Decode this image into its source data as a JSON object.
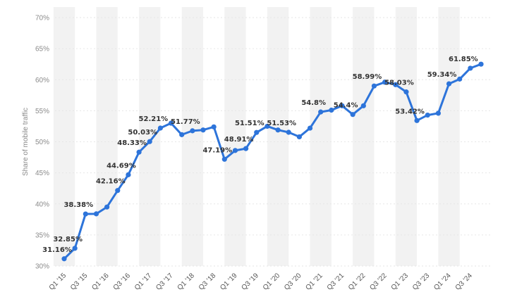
{
  "chart_data": {
    "type": "line",
    "title": "",
    "xlabel": "",
    "ylabel": "Share of mobile traffic",
    "ylim": [
      30,
      70
    ],
    "yticks": [
      "30%",
      "35%",
      "40%",
      "45%",
      "50%",
      "55%",
      "60%",
      "65%",
      "70%"
    ],
    "grid": true,
    "legend": "none",
    "line_color": "#2d74da",
    "band_color": "#f2f2f2",
    "x": [
      "Q1 '15",
      "Q2 '15",
      "Q3 '15",
      "Q4 '15",
      "Q1 '16",
      "Q2 '16",
      "Q3 '16",
      "Q4 '16",
      "Q1 '17",
      "Q2 '17",
      "Q3 '17",
      "Q4 '17",
      "Q1 '18",
      "Q2 '18",
      "Q3 '18",
      "Q4 '18",
      "Q1 '19",
      "Q2 '19",
      "Q3 '19",
      "Q4 '19",
      "Q1 '20",
      "Q2 '20",
      "Q3 '20",
      "Q4 '20",
      "Q1 '21",
      "Q2 '21",
      "Q3 '21",
      "Q4 '21",
      "Q1 '22",
      "Q2 '22",
      "Q3 '22",
      "Q4 '22",
      "Q1 '23",
      "Q2 '23",
      "Q3 '23",
      "Q4 '23",
      "Q1 '24",
      "Q2 '24",
      "Q3 '24",
      "Q4 '24"
    ],
    "xtick_labels": [
      "Q1 '15",
      "Q3 '15",
      "Q1 '16",
      "Q3 '16",
      "Q1 '17",
      "Q3 '17",
      "Q1 '18",
      "Q3 '18",
      "Q1 '19",
      "Q3 '19",
      "Q1 '20",
      "Q3 '20",
      "Q1 '21",
      "Q3 '21",
      "Q1 '22",
      "Q3 '22",
      "Q1 '23",
      "Q3 '23",
      "Q1 '24",
      "Q3 '24"
    ],
    "series": [
      {
        "values": [
          31.16,
          32.85,
          38.38,
          38.4,
          39.5,
          42.16,
          44.69,
          48.33,
          50.03,
          52.21,
          53.0,
          51.15,
          51.77,
          51.9,
          52.4,
          47.19,
          48.6,
          48.91,
          51.51,
          52.5,
          51.9,
          51.53,
          50.8,
          52.2,
          54.8,
          55.1,
          55.8,
          54.4,
          55.8,
          58.99,
          59.6,
          59.2,
          58.03,
          53.42,
          54.3,
          54.6,
          59.34,
          60.1,
          61.85,
          62.5
        ]
      }
    ],
    "data_labels": [
      {
        "index": 0,
        "text": "31.16%"
      },
      {
        "index": 1,
        "text": "32.85%"
      },
      {
        "index": 2,
        "text": "38.38%"
      },
      {
        "index": 5,
        "text": "42.16%"
      },
      {
        "index": 6,
        "text": "44.69%"
      },
      {
        "index": 7,
        "text": "48.33%"
      },
      {
        "index": 8,
        "text": "50.03%"
      },
      {
        "index": 9,
        "text": "52.21%"
      },
      {
        "index": 12,
        "text": "51.77%"
      },
      {
        "index": 15,
        "text": "47.19%"
      },
      {
        "index": 17,
        "text": "48.91%"
      },
      {
        "index": 18,
        "text": "51.51%"
      },
      {
        "index": 21,
        "text": "51.53%"
      },
      {
        "index": 24,
        "text": "54.8%"
      },
      {
        "index": 27,
        "text": "54.4%"
      },
      {
        "index": 29,
        "text": "58.99%"
      },
      {
        "index": 32,
        "text": "58.03%"
      },
      {
        "index": 33,
        "text": "53.42%"
      },
      {
        "index": 36,
        "text": "59.34%"
      },
      {
        "index": 38,
        "text": "61.85%"
      }
    ]
  }
}
